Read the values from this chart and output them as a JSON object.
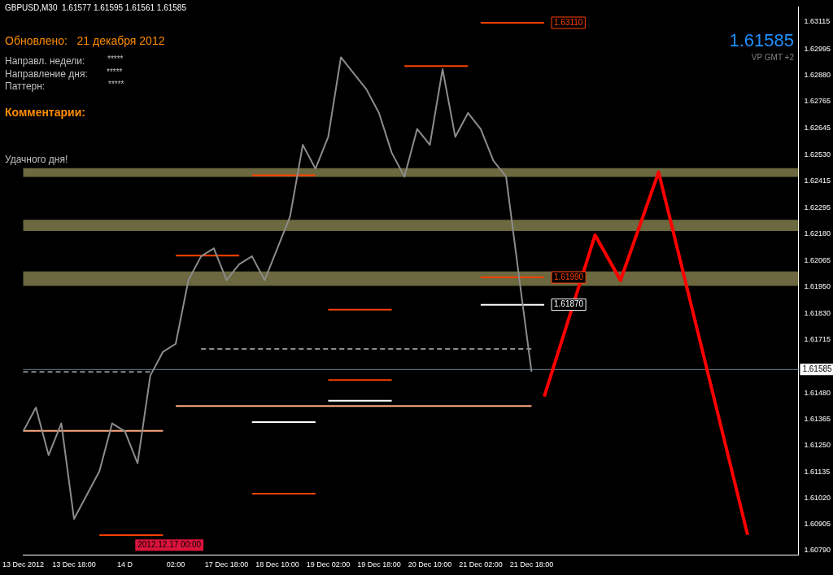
{
  "chart_data": {
    "type": "line",
    "title": "GBPUSD,M30  1.61577 1.61595 1.61561 1.61585",
    "categories": [
      "13 Dec 2012",
      null,
      null,
      null,
      "13 Dec 18:00",
      null,
      null,
      null,
      "14 D",
      null,
      null,
      null,
      "02:00",
      null,
      null,
      null,
      "17 Dec 18:00",
      null,
      null,
      null,
      "18 Dec 10:00",
      null,
      null,
      null,
      "19 Dec 02:00",
      null,
      null,
      null,
      "19 Dec 18:00",
      null,
      null,
      null,
      "20 Dec 10:00",
      null,
      null,
      null,
      "21 Dec 02:00",
      null,
      null,
      null,
      "21 Dec 18:00",
      null,
      null,
      null,
      null,
      null,
      null,
      null,
      null,
      null,
      null,
      null,
      null,
      null,
      null,
      null,
      null,
      null,
      null,
      null,
      null,
      null
    ],
    "ylim": [
      1.6077,
      1.6318
    ],
    "yticks": [
      {
        "value": 1.63115,
        "label": "1.63115"
      },
      {
        "value": 1.62995,
        "label": "1.62995"
      },
      {
        "value": 1.6288,
        "label": "1.62880"
      },
      {
        "value": 1.62765,
        "label": "1.62765"
      },
      {
        "value": 1.62645,
        "label": "1.62645"
      },
      {
        "value": 1.6253,
        "label": "1.62530"
      },
      {
        "value": 1.62415,
        "label": "1.62415"
      },
      {
        "value": 1.62295,
        "label": "1.62295"
      },
      {
        "value": 1.6218,
        "label": "1.62180"
      },
      {
        "value": 1.62065,
        "label": "1.62065"
      },
      {
        "value": 1.6195,
        "label": "1.61950"
      },
      {
        "value": 1.6183,
        "label": "1.61830"
      },
      {
        "value": 1.61715,
        "label": "1.61715"
      },
      {
        "value": 1.6148,
        "label": "1.61480"
      },
      {
        "value": 1.61365,
        "label": "1.61365"
      },
      {
        "value": 1.6125,
        "label": "1.61250"
      },
      {
        "value": 1.61135,
        "label": "1.61135"
      },
      {
        "value": 1.6102,
        "label": "1.61020"
      },
      {
        "value": 1.60905,
        "label": "1.60905"
      },
      {
        "value": 1.6079,
        "label": "1.60790"
      }
    ],
    "grid": false,
    "legend": false,
    "marker": "none",
    "series": [
      {
        "color": "#8c8c8c",
        "values": [
          1.61313,
          1.61418,
          1.61208,
          1.61348,
          1.60928,
          1.61033,
          1.61138,
          1.61348,
          1.61313,
          1.61173,
          1.61558,
          1.61663,
          1.61698,
          1.61978,
          1.62083,
          1.62118,
          1.61978,
          1.62048,
          1.62083,
          1.61978,
          1.62118,
          1.62258,
          1.62573,
          1.62468,
          1.62608,
          1.62958,
          1.62888,
          1.62818,
          1.62713,
          1.62538,
          1.62433,
          1.62643,
          1.62573,
          1.62906,
          1.62608,
          1.62713,
          1.62643,
          1.62503,
          1.62433,
          1.62,
          1.61575,
          null,
          null,
          null,
          null,
          null,
          null,
          null,
          null,
          null,
          null,
          null,
          null,
          null,
          null,
          null,
          null,
          null,
          null,
          null,
          null,
          null
        ]
      },
      {
        "color": "#ff0000",
        "values": [
          null,
          null,
          null,
          null,
          null,
          null,
          null,
          null,
          null,
          null,
          null,
          null,
          null,
          null,
          null,
          null,
          null,
          null,
          null,
          null,
          null,
          null,
          null,
          null,
          null,
          null,
          null,
          null,
          null,
          null,
          null,
          null,
          null,
          null,
          null,
          null,
          null,
          null,
          null,
          null,
          null,
          1.61466,
          null,
          null,
          null,
          1.62176,
          null,
          1.61977,
          null,
          null,
          1.62453,
          null,
          null,
          null,
          null,
          null,
          null,
          1.60858,
          null,
          null,
          null,
          null
        ]
      },
      {
        "color": "#ff4000",
        "values": [
          null,
          null,
          null,
          null,
          null,
          null,
          null,
          null,
          null,
          null,
          null,
          null,
          null,
          null,
          null,
          null,
          null,
          null,
          null,
          null,
          null,
          null,
          null,
          null,
          null,
          null,
          null,
          null,
          null,
          null,
          null,
          null,
          null,
          null,
          null,
          null,
          1.6311,
          null,
          null,
          null,
          null,
          1.6311,
          null,
          null,
          null,
          null,
          null,
          null,
          null,
          null,
          null,
          null,
          null,
          null,
          null,
          null,
          null,
          null,
          null,
          null,
          null,
          null
        ]
      },
      {
        "color": "#ff4000",
        "values": [
          null,
          null,
          null,
          null,
          null,
          null,
          null,
          null,
          null,
          null,
          null,
          null,
          null,
          null,
          null,
          null,
          null,
          null,
          null,
          null,
          null,
          null,
          null,
          null,
          null,
          null,
          null,
          null,
          null,
          null,
          null,
          null,
          null,
          null,
          null,
          null,
          1.6199,
          null,
          null,
          null,
          null,
          1.6199,
          null,
          null,
          null,
          null,
          null,
          null,
          null,
          null,
          null,
          null,
          null,
          null,
          null,
          null,
          null,
          null,
          null,
          null,
          null,
          null
        ]
      },
      {
        "color": "#ffffff",
        "values": [
          null,
          null,
          null,
          null,
          null,
          null,
          null,
          null,
          null,
          null,
          null,
          null,
          null,
          null,
          null,
          null,
          null,
          null,
          null,
          null,
          null,
          null,
          null,
          null,
          null,
          null,
          null,
          null,
          null,
          null,
          null,
          null,
          null,
          null,
          null,
          null,
          1.6187,
          null,
          null,
          null,
          null,
          1.6187,
          null,
          null,
          null,
          null,
          null,
          null,
          null,
          null,
          null,
          null,
          null,
          null,
          null,
          null,
          null,
          null,
          null,
          null,
          null,
          null
        ]
      },
      {
        "color": "#ffaa80",
        "values": [
          null,
          null,
          null,
          null,
          null,
          null,
          null,
          null,
          null,
          null,
          null,
          null,
          1.61424,
          null,
          null,
          null,
          null,
          null,
          null,
          null,
          null,
          null,
          null,
          null,
          null,
          null,
          null,
          null,
          null,
          null,
          null,
          null,
          null,
          null,
          null,
          null,
          null,
          null,
          null,
          null,
          1.61424,
          null,
          null,
          null,
          null,
          null,
          null,
          null,
          null,
          null,
          null,
          null,
          null,
          null,
          null,
          null,
          null,
          null,
          null,
          null,
          null,
          null
        ]
      },
      {
        "color": "#ffaa80",
        "values": [
          1.61315,
          null,
          null,
          null,
          null,
          null,
          null,
          null,
          null,
          null,
          null,
          1.61315,
          null,
          null,
          null,
          null,
          null,
          null,
          null,
          null,
          null,
          null,
          null,
          null,
          null,
          null,
          null,
          null,
          null,
          null,
          null,
          null,
          null,
          null,
          null,
          null,
          null,
          null,
          null,
          null,
          null,
          null,
          null,
          null,
          null,
          null,
          null,
          null,
          null,
          null,
          null,
          null,
          null,
          null,
          null,
          null,
          null,
          null,
          null,
          null,
          null,
          null
        ]
      },
      {
        "color": "#ffffff",
        "values": [
          null,
          null,
          null,
          null,
          null,
          null,
          null,
          null,
          null,
          null,
          null,
          null,
          null,
          null,
          null,
          null,
          null,
          null,
          1.61354,
          null,
          null,
          null,
          null,
          1.61354,
          null,
          null,
          null,
          null,
          null,
          null,
          null,
          null,
          null,
          null,
          null,
          null,
          null,
          null,
          null,
          null,
          null,
          null,
          null,
          null,
          null,
          null,
          null,
          null,
          null,
          null,
          null,
          null,
          null,
          null,
          null,
          null,
          null,
          null,
          null,
          null,
          null,
          null
        ]
      },
      {
        "color": "#ffffff",
        "values": [
          null,
          null,
          null,
          null,
          null,
          null,
          null,
          null,
          null,
          null,
          null,
          null,
          null,
          null,
          null,
          null,
          null,
          null,
          null,
          null,
          null,
          null,
          null,
          null,
          1.61448,
          null,
          null,
          null,
          null,
          1.61448,
          null,
          null,
          null,
          null,
          null,
          null,
          null,
          null,
          null,
          null,
          null,
          null,
          null,
          null,
          null,
          null,
          null,
          null,
          null,
          null,
          null,
          null,
          null,
          null,
          null,
          null,
          null,
          null,
          null,
          null,
          null,
          null
        ]
      },
      {
        "color": "#ff4000",
        "values": [
          null,
          null,
          null,
          null,
          null,
          null,
          null,
          null,
          null,
          null,
          null,
          null,
          null,
          null,
          null,
          null,
          null,
          null,
          1.61039,
          null,
          null,
          null,
          null,
          1.61039,
          null,
          null,
          null,
          null,
          null,
          null,
          null,
          null,
          null,
          null,
          null,
          null,
          null,
          null,
          null,
          null,
          null,
          null,
          null,
          null,
          null,
          null,
          null,
          null,
          null,
          null,
          null,
          null,
          null,
          null,
          null,
          null,
          null,
          null,
          null,
          null,
          null,
          null
        ]
      },
      {
        "color": "#ff4000",
        "values": [
          null,
          null,
          null,
          null,
          null,
          null,
          1.60857,
          null,
          null,
          null,
          null,
          1.60857,
          null,
          null,
          null,
          null,
          null,
          null,
          null,
          null,
          null,
          null,
          null,
          null,
          null,
          null,
          null,
          null,
          null,
          null,
          null,
          null,
          null,
          null,
          null,
          null,
          null,
          null,
          null,
          null,
          null,
          null,
          null,
          null,
          null,
          null,
          null,
          null,
          null,
          null,
          null,
          null,
          null,
          null,
          null,
          null,
          null,
          null,
          null,
          null,
          null,
          null
        ]
      },
      {
        "color": "#ff4000",
        "values": [
          null,
          null,
          null,
          null,
          null,
          null,
          null,
          null,
          null,
          null,
          null,
          null,
          null,
          null,
          null,
          null,
          null,
          null,
          null,
          null,
          null,
          null,
          null,
          null,
          1.61539,
          null,
          null,
          null,
          null,
          1.61539,
          null,
          null,
          null,
          null,
          null,
          null,
          null,
          null,
          null,
          null,
          null,
          null,
          null,
          null,
          null,
          null,
          null,
          null,
          null,
          null,
          null,
          null,
          null,
          null,
          null,
          null,
          null,
          null,
          null,
          null,
          null,
          null
        ]
      },
      {
        "color": "#ff4000",
        "values": [
          null,
          null,
          null,
          null,
          null,
          null,
          null,
          null,
          null,
          null,
          null,
          null,
          null,
          null,
          null,
          null,
          null,
          null,
          null,
          null,
          null,
          null,
          null,
          null,
          1.61848,
          null,
          null,
          null,
          null,
          1.61848,
          null,
          null,
          null,
          null,
          null,
          null,
          null,
          null,
          null,
          null,
          null,
          null,
          null,
          null,
          null,
          null,
          null,
          null,
          null,
          null,
          null,
          null,
          null,
          null,
          null,
          null,
          null,
          null,
          null,
          null,
          null,
          null
        ]
      },
      {
        "color": "#ff4000",
        "values": [
          null,
          null,
          null,
          null,
          null,
          null,
          null,
          null,
          null,
          null,
          null,
          null,
          null,
          null,
          null,
          null,
          null,
          null,
          null,
          null,
          null,
          null,
          null,
          null,
          null,
          null,
          null,
          null,
          null,
          null,
          1.62919,
          null,
          null,
          null,
          null,
          1.62919,
          null,
          null,
          null,
          null,
          null,
          null,
          null,
          null,
          null,
          null,
          null,
          null,
          null,
          null,
          null,
          null,
          null,
          null,
          null,
          null,
          null,
          null,
          null,
          null,
          null,
          null
        ]
      },
      {
        "color": "#ff4000",
        "values": [
          null,
          null,
          null,
          null,
          null,
          null,
          null,
          null,
          null,
          null,
          null,
          null,
          null,
          null,
          null,
          null,
          null,
          null,
          1.62439,
          null,
          null,
          null,
          null,
          1.62439,
          null,
          null,
          null,
          null,
          null,
          null,
          null,
          null,
          null,
          null,
          null,
          null,
          null,
          null,
          null,
          null,
          null,
          null,
          null,
          null,
          null,
          null,
          null,
          null,
          null,
          null,
          null,
          null,
          null,
          null,
          null,
          null,
          null,
          null,
          null,
          null,
          null,
          null
        ]
      },
      {
        "color": "#ff4000",
        "values": [
          null,
          null,
          null,
          null,
          null,
          null,
          null,
          null,
          null,
          null,
          null,
          null,
          1.62086,
          null,
          null,
          null,
          null,
          1.62086,
          null,
          null,
          null,
          null,
          null,
          null,
          null,
          null,
          null,
          null,
          null,
          null,
          null,
          null,
          null,
          null,
          null,
          null,
          null,
          null,
          null,
          null,
          null,
          null,
          null,
          null,
          null,
          null,
          null,
          null,
          null,
          null,
          null,
          null,
          null,
          null,
          null,
          null,
          null,
          null,
          null,
          null,
          null,
          null
        ]
      },
      {
        "color": "#8c8c8c",
        "line_style": "dashed",
        "values": [
          null,
          null,
          null,
          null,
          null,
          null,
          null,
          null,
          null,
          null,
          null,
          null,
          null,
          null,
          1.61676,
          null,
          null,
          null,
          null,
          null,
          null,
          null,
          null,
          null,
          null,
          null,
          null,
          null,
          null,
          null,
          null,
          null,
          null,
          null,
          null,
          null,
          null,
          null,
          null,
          null,
          1.61676,
          null,
          null,
          null,
          null,
          null,
          null,
          null,
          null,
          null,
          null,
          null,
          null,
          null,
          null,
          null,
          null,
          null,
          null,
          null,
          null,
          null
        ]
      },
      {
        "color": "#8c8c8c",
        "line_style": "dashed",
        "values": [
          1.61575,
          null,
          null,
          null,
          null,
          null,
          null,
          null,
          null,
          null,
          1.61575,
          null,
          null,
          null,
          null,
          null,
          null,
          null,
          null,
          null,
          null,
          null,
          null,
          null,
          null,
          null,
          null,
          null,
          null,
          null,
          null,
          null,
          null,
          null,
          null,
          null,
          null,
          null,
          null,
          null,
          null,
          null,
          null,
          null,
          null,
          null,
          null,
          null,
          null,
          null,
          null,
          null,
          null,
          null,
          null,
          null,
          null,
          null,
          null,
          null,
          null,
          null
        ]
      }
    ],
    "bands": [
      {
        "axis": "y",
        "from": 1.62432,
        "to": 1.62471,
        "color": "#f0e68c"
      },
      {
        "axis": "y",
        "from": 1.62194,
        "to": 1.62243,
        "color": "#f0e68c"
      },
      {
        "axis": "y",
        "from": 1.61953,
        "to": 1.62016,
        "color": "#f0e68c"
      }
    ],
    "ref_lines": [
      {
        "axis": "y",
        "value": 1.61585,
        "label": "1.61585",
        "color": "#708090"
      }
    ],
    "annotations": [
      "Обновлено:   21 декабря 2012",
      "Направл. недели:",
      "*****",
      "Направление дня:",
      "*****",
      "Паттерн:",
      "*****",
      "Комментарии:",
      "Удачного дня!",
      "1.61585",
      "VP GMT +2",
      "2012.12.17 00:00",
      {
        "text": "1.63110",
        "y": 1.6311
      },
      {
        "text": "1.61990",
        "y": 1.6199
      },
      {
        "text": "1.61870",
        "y": 1.6187
      }
    ]
  }
}
